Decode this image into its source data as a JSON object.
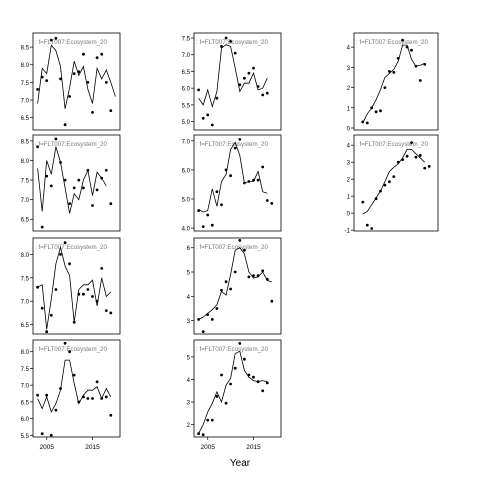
{
  "figure": {
    "x_axis_title": "Year"
  },
  "chart_data": [
    {
      "type": "scatter",
      "row": 0,
      "col": 0,
      "label": ": f=FLT007:Ecosystem_20",
      "x": [
        2003,
        2004,
        2005,
        2006,
        2007,
        2008,
        2009,
        2010,
        2011,
        2012,
        2013,
        2014,
        2015,
        2016,
        2017,
        2018,
        2019,
        2020
      ],
      "points": [
        7.3,
        7.65,
        7.55,
        8.7,
        8.75,
        7.6,
        6.3,
        7.1,
        7.75,
        7.8,
        8.3,
        7.5,
        6.65,
        8.2,
        8.3,
        7.5,
        6.7,
        null
      ],
      "trend": [
        6.9,
        7.9,
        7.75,
        8.55,
        8.4,
        7.95,
        6.75,
        7.35,
        8.1,
        7.7,
        7.95,
        7.3,
        6.9,
        7.9,
        7.6,
        7.85,
        7.5,
        7.1
      ],
      "yticks": [
        6.5,
        7.0,
        7.5,
        8.0,
        8.5
      ],
      "yticklabels": [
        "6.5",
        "7.0",
        "7.5",
        "8.0",
        "8.5"
      ],
      "ylim": [
        6.15,
        8.9
      ],
      "xlim": [
        2002,
        2021
      ],
      "show_xticks": false
    },
    {
      "type": "scatter",
      "row": 0,
      "col": 1,
      "label": ": f=FLT007:Ecosystem_20",
      "x": [
        2003,
        2004,
        2005,
        2006,
        2007,
        2008,
        2009,
        2010,
        2011,
        2012,
        2013,
        2014,
        2015,
        2016,
        2017,
        2018,
        2019,
        2020
      ],
      "points": [
        5.95,
        5.1,
        5.2,
        4.9,
        5.7,
        7.25,
        7.5,
        7.4,
        7.05,
        6.1,
        6.3,
        6.45,
        6.6,
        6.05,
        5.8,
        5.85,
        null,
        null
      ],
      "trend": [
        5.7,
        5.5,
        5.95,
        5.45,
        5.9,
        7.2,
        7.3,
        7.25,
        6.6,
        5.9,
        6.15,
        6.15,
        6.45,
        5.95,
        6.0,
        6.3,
        null,
        null
      ],
      "yticks": [
        5.0,
        5.5,
        6.0,
        6.5,
        7.0,
        7.5
      ],
      "yticklabels": [
        "5.0",
        "5.5",
        "6.0",
        "6.5",
        "7.0",
        "7.5"
      ],
      "ylim": [
        4.75,
        7.65
      ],
      "xlim": [
        2002,
        2021
      ],
      "show_xticks": false
    },
    {
      "type": "scatter",
      "row": 0,
      "col": 2,
      "label": ": f=FLT007:Ecosystem_20",
      "x": [
        2004,
        2005,
        2006,
        2007,
        2008,
        2009,
        2010,
        2011,
        2012,
        2013,
        2014,
        2015,
        2016,
        2017,
        2018,
        2019,
        2020
      ],
      "points": [
        0.3,
        0.25,
        1.0,
        0.8,
        0.85,
        2.0,
        2.8,
        2.75,
        3.45,
        4.35,
        4.0,
        3.85,
        3.05,
        2.35,
        3.15,
        null,
        null
      ],
      "trend": [
        0.25,
        0.7,
        1.0,
        1.4,
        1.9,
        2.5,
        2.7,
        2.9,
        3.3,
        4.1,
        4.1,
        3.4,
        3.05,
        3.1,
        3.2,
        null,
        null
      ],
      "yticks": [
        0,
        1,
        2,
        3,
        4
      ],
      "yticklabels": [
        "0",
        "1",
        "2",
        "3",
        "4"
      ],
      "ylim": [
        -0.1,
        4.7
      ],
      "xlim": [
        2002,
        2021
      ],
      "show_xticks": false
    },
    {
      "type": "scatter",
      "row": 1,
      "col": 0,
      "label": ": f=FLT007:Ecosystem_20",
      "x": [
        2003,
        2004,
        2005,
        2006,
        2007,
        2008,
        2009,
        2010,
        2011,
        2012,
        2013,
        2014,
        2015,
        2016,
        2017,
        2018,
        2019,
        2020
      ],
      "points": [
        8.35,
        6.3,
        7.6,
        7.35,
        8.55,
        7.95,
        7.5,
        6.9,
        7.3,
        7.5,
        7.3,
        7.75,
        6.85,
        7.25,
        7.55,
        7.75,
        6.9,
        null
      ],
      "trend": [
        7.8,
        6.7,
        8.0,
        7.65,
        8.35,
        7.95,
        7.3,
        6.65,
        7.15,
        7.0,
        7.5,
        7.75,
        7.1,
        7.7,
        7.55,
        7.35,
        null,
        null
      ],
      "yticks": [
        6.5,
        7.0,
        7.5,
        8.0,
        8.5
      ],
      "yticklabels": [
        "6.5",
        "7.0",
        "7.5",
        "8.0",
        "8.5"
      ],
      "ylim": [
        6.2,
        8.65
      ],
      "xlim": [
        2002,
        2021
      ],
      "show_xticks": false
    },
    {
      "type": "scatter",
      "row": 1,
      "col": 1,
      "label": ": f=FLT007:Ecosystem_20",
      "x": [
        2003,
        2004,
        2005,
        2006,
        2007,
        2008,
        2009,
        2010,
        2011,
        2012,
        2013,
        2014,
        2015,
        2016,
        2017,
        2018,
        2019,
        2020
      ],
      "points": [
        4.6,
        4.05,
        4.45,
        4.1,
        5.25,
        4.8,
        6.0,
        5.8,
        6.75,
        7.05,
        5.55,
        5.6,
        5.65,
        5.65,
        6.1,
        4.95,
        4.85,
        null
      ],
      "trend": [
        4.65,
        4.55,
        4.6,
        5.35,
        4.75,
        5.6,
        5.85,
        6.7,
        6.95,
        6.5,
        5.55,
        5.6,
        5.6,
        5.95,
        5.25,
        5.2,
        null,
        null
      ],
      "yticks": [
        4.0,
        5.0,
        6.0,
        7.0
      ],
      "yticklabels": [
        "4.0",
        "5.0",
        "6.0",
        "7.0"
      ],
      "ylim": [
        3.9,
        7.2
      ],
      "xlim": [
        2002,
        2021
      ],
      "show_xticks": false
    },
    {
      "type": "scatter",
      "row": 1,
      "col": 2,
      "label": ": f=FLT007:Ecosystem_20",
      "x": [
        2004,
        2005,
        2006,
        2007,
        2008,
        2009,
        2010,
        2011,
        2012,
        2013,
        2014,
        2015,
        2016,
        2017,
        2018,
        2019,
        2020
      ],
      "points": [
        0.65,
        -0.7,
        -0.9,
        0.85,
        1.3,
        1.65,
        1.85,
        2.15,
        3.0,
        3.15,
        3.35,
        4.15,
        3.3,
        3.4,
        2.65,
        2.75,
        null
      ],
      "trend": [
        -0.05,
        0.1,
        0.5,
        0.9,
        1.3,
        1.85,
        2.45,
        2.7,
        2.9,
        3.25,
        3.75,
        3.75,
        3.5,
        3.25,
        3.0,
        null,
        null
      ],
      "yticks": [
        -1,
        0,
        1,
        2,
        3,
        4
      ],
      "yticklabels": [
        "-1",
        "0",
        "1",
        "2",
        "3",
        "4"
      ],
      "ylim": [
        -1.05,
        4.6
      ],
      "xlim": [
        2002,
        2021
      ],
      "show_xticks": false
    },
    {
      "type": "scatter",
      "row": 2,
      "col": 0,
      "label": ": f=FLT007:Ecosystem_20",
      "x": [
        2003,
        2004,
        2005,
        2006,
        2007,
        2008,
        2009,
        2010,
        2011,
        2012,
        2013,
        2014,
        2015,
        2016,
        2017,
        2018,
        2019,
        2020
      ],
      "points": [
        7.3,
        6.85,
        6.35,
        6.7,
        7.25,
        8.0,
        8.25,
        7.8,
        6.55,
        7.15,
        7.15,
        7.25,
        7.1,
        7.0,
        7.7,
        6.8,
        6.75,
        null
      ],
      "trend": [
        7.3,
        7.35,
        6.4,
        7.05,
        7.8,
        8.15,
        7.75,
        7.55,
        6.55,
        7.25,
        7.35,
        7.35,
        7.45,
        6.9,
        7.5,
        7.1,
        7.2,
        null
      ],
      "yticks": [
        6.5,
        7.0,
        7.5,
        8.0
      ],
      "yticklabels": [
        "6.5",
        "7.0",
        "7.5",
        "8.0"
      ],
      "ylim": [
        6.3,
        8.35
      ],
      "xlim": [
        2002,
        2021
      ],
      "show_xticks": false
    },
    {
      "type": "scatter",
      "row": 2,
      "col": 1,
      "label": ": f=FLT007:Ecosystem_20",
      "x": [
        2003,
        2004,
        2005,
        2006,
        2007,
        2008,
        2009,
        2010,
        2011,
        2012,
        2013,
        2014,
        2015,
        2016,
        2017,
        2018,
        2019,
        2020
      ],
      "points": [
        3.05,
        2.55,
        3.25,
        3.05,
        3.5,
        4.25,
        4.6,
        4.3,
        5.0,
        6.3,
        5.9,
        4.8,
        4.85,
        4.85,
        5.05,
        4.7,
        3.8,
        null
      ],
      "trend": [
        3.05,
        3.15,
        3.3,
        3.45,
        3.65,
        4.2,
        4.05,
        4.9,
        5.9,
        6.0,
        5.75,
        5.0,
        4.75,
        4.8,
        5.0,
        4.65,
        4.6,
        null
      ],
      "yticks": [
        3,
        4,
        5,
        6
      ],
      "yticklabels": [
        "3",
        "4",
        "5",
        "6"
      ],
      "ylim": [
        2.45,
        6.4
      ],
      "xlim": [
        2002,
        2021
      ],
      "show_xticks": false
    },
    {
      "type": "scatter",
      "row": 3,
      "col": 0,
      "label": ": f=FLT007:Ecosystem_20",
      "x": [
        2003,
        2004,
        2005,
        2006,
        2007,
        2008,
        2009,
        2010,
        2011,
        2012,
        2013,
        2014,
        2015,
        2016,
        2017,
        2018,
        2019,
        2020
      ],
      "points": [
        6.7,
        5.55,
        6.7,
        5.5,
        6.25,
        6.9,
        8.25,
        8.0,
        7.3,
        6.5,
        6.65,
        6.6,
        6.6,
        7.1,
        6.6,
        6.65,
        6.1,
        null
      ],
      "trend": [
        6.6,
        6.3,
        6.65,
        6.2,
        6.45,
        6.85,
        7.75,
        7.75,
        7.05,
        6.45,
        6.7,
        6.85,
        6.85,
        6.95,
        6.6,
        6.9,
        6.65,
        null
      ],
      "yticks": [
        5.5,
        6.0,
        6.5,
        7.0,
        7.5,
        8.0
      ],
      "yticklabels": [
        "5.5",
        "6.0",
        "6.5",
        "7.0",
        "7.5",
        "8.0"
      ],
      "ylim": [
        5.45,
        8.35
      ],
      "xlim": [
        2002,
        2021
      ],
      "show_xticks": true
    },
    {
      "type": "scatter",
      "row": 3,
      "col": 1,
      "label": ": f=FLT007:Ecosystem_20",
      "x": [
        2003,
        2004,
        2005,
        2006,
        2007,
        2008,
        2009,
        2010,
        2011,
        2012,
        2013,
        2014,
        2015,
        2016,
        2017,
        2018,
        2019,
        2020
      ],
      "points": [
        1.6,
        1.55,
        2.2,
        2.2,
        3.25,
        4.2,
        2.95,
        3.8,
        4.5,
        5.6,
        4.9,
        4.2,
        4.1,
        3.9,
        3.5,
        3.85,
        null,
        null
      ],
      "trend": [
        1.6,
        2.0,
        2.55,
        2.95,
        3.45,
        3.0,
        3.75,
        4.05,
        5.15,
        5.25,
        4.4,
        4.1,
        3.95,
        3.9,
        3.95,
        3.9,
        null,
        null
      ],
      "yticks": [
        2,
        3,
        4,
        5
      ],
      "yticklabels": [
        "2",
        "3",
        "4",
        "5"
      ],
      "ylim": [
        1.45,
        5.75
      ],
      "xlim": [
        2002,
        2021
      ],
      "show_xticks": true
    }
  ],
  "xtick_values": [
    2005,
    2015
  ],
  "xtick_labels": [
    "2005",
    "2015"
  ]
}
